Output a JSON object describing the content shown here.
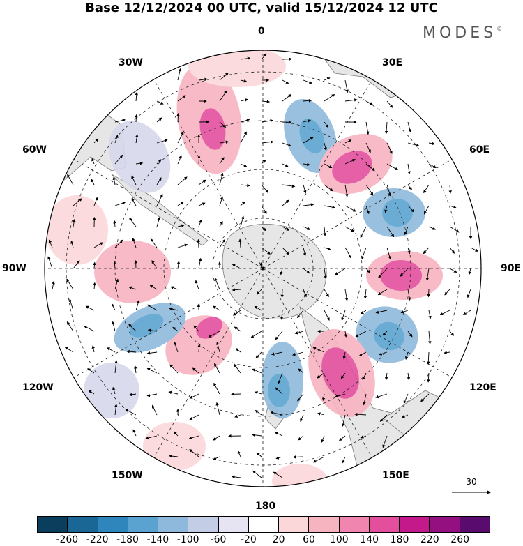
{
  "title": "Base 12/12/2024 00 UTC, valid 15/12/2024 12 UTC",
  "brand": "MODES",
  "brand_mark": "©",
  "longitude_labels": {
    "n": "0",
    "e30": "30E",
    "e60": "60E",
    "e90": "90E",
    "e120": "120E",
    "e150": "150E",
    "s": "180",
    "w150": "150W",
    "w120": "120W",
    "w90": "90W",
    "w60": "60W",
    "w30": "30W"
  },
  "reference_vector": "30",
  "colorbar": {
    "colors": [
      "#0b3d5c",
      "#1a6694",
      "#2f86bd",
      "#5aa3d0",
      "#8fb9dc",
      "#c4cde6",
      "#e6e4f2",
      "#ffffff",
      "#fbd7da",
      "#f6b3c0",
      "#f086b0",
      "#e34f9c",
      "#c4198a",
      "#941080",
      "#5a0b6e"
    ],
    "ticks": [
      "-260",
      "-220",
      "-180",
      "-140",
      "-100",
      "-60",
      "-20",
      "20",
      "60",
      "100",
      "140",
      "180",
      "220",
      "260"
    ]
  },
  "anomaly_colors": {
    "strong_negative": "#5aa3d0",
    "negative": "#8fb9dc",
    "weak_negative": "#d6d8ec",
    "weak_positive": "#fbd7da",
    "positive": "#f6b3c0",
    "strong_positive": "#e34f9c",
    "land": "#e8e8e8"
  }
}
